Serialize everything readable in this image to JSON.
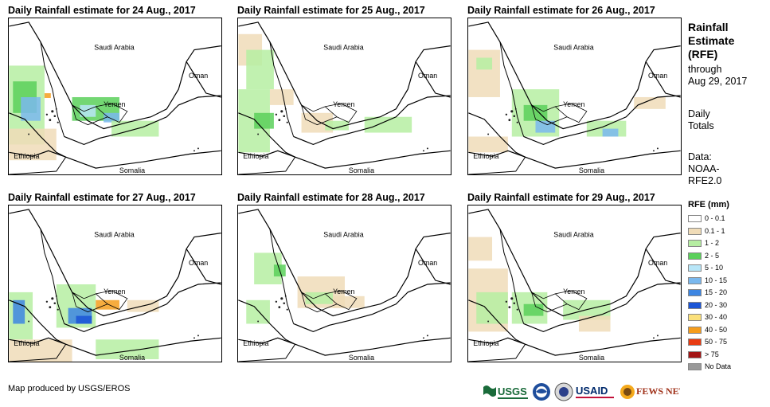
{
  "panels": [
    {
      "title": "Daily Rainfall estimate for 24 Aug., 2017"
    },
    {
      "title": "Daily Rainfall estimate for 25 Aug., 2017"
    },
    {
      "title": "Daily Rainfall estimate for 26 Aug., 2017"
    },
    {
      "title": "Daily Rainfall estimate for 27 Aug., 2017"
    },
    {
      "title": "Daily Rainfall estimate for 28 Aug., 2017"
    },
    {
      "title": "Daily Rainfall estimate for 29 Aug., 2017"
    }
  ],
  "map_labels": {
    "saudi": "Saudi Arabia",
    "oman": "Oman",
    "yemen": "Yemen",
    "ethiopia": "Ethiopia",
    "somalia": "Somalia"
  },
  "side": {
    "title_lines": [
      "Rainfall",
      "Estimate",
      "(RFE)"
    ],
    "through_lines": [
      "through",
      "Aug 29, 2017"
    ],
    "daily_lines": [
      "Daily",
      "Totals"
    ],
    "data_lines": [
      "Data:",
      "NOAA-",
      "RFE2.0"
    ]
  },
  "legend": {
    "title": "RFE (mm)",
    "items": [
      {
        "label": "0 - 0.1",
        "color": "#ffffff"
      },
      {
        "label": "0.1 - 1",
        "color": "#f0dcb8"
      },
      {
        "label": "1 - 2",
        "color": "#b6eea2"
      },
      {
        "label": "2 - 5",
        "color": "#5bd05b"
      },
      {
        "label": "5 - 10",
        "color": "#b8e6f8"
      },
      {
        "label": "10 - 15",
        "color": "#7ab8ee"
      },
      {
        "label": "15 - 20",
        "color": "#3d86e2"
      },
      {
        "label": "20 - 30",
        "color": "#1b55d6"
      },
      {
        "label": "30 - 40",
        "color": "#fbe07a"
      },
      {
        "label": "40 - 50",
        "color": "#f59d1c"
      },
      {
        "label": "50 - 75",
        "color": "#e83b12"
      },
      {
        "label": "> 75",
        "color": "#a31616"
      },
      {
        "label": "No Data",
        "color": "#999999"
      }
    ]
  },
  "credit": "Map produced by USGS/EROS",
  "logos": {
    "usgs": "USGS",
    "usaid": "USAID",
    "fewsnet": "FEWS NET"
  }
}
